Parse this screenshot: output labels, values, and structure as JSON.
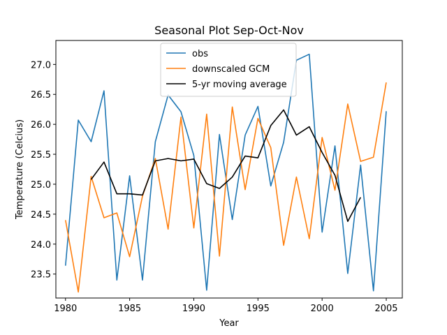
{
  "chart_data": {
    "type": "line",
    "title": "Seasonal Plot Sep-Oct-Nov",
    "xlabel": "Year",
    "ylabel": "Temperature (Celcius)",
    "xlim": [
      1979.25,
      2006.25
    ],
    "ylim": [
      23.1,
      27.4
    ],
    "xticks": [
      1980,
      1985,
      1990,
      1995,
      2000,
      2005
    ],
    "yticks": [
      23.5,
      24.0,
      24.5,
      25.0,
      25.5,
      26.0,
      26.5,
      27.0
    ],
    "ytick_labels": [
      "23.5",
      "24.0",
      "24.5",
      "25.0",
      "25.5",
      "26.0",
      "26.5",
      "27.0"
    ],
    "grid": false,
    "legend": "upper center",
    "series": [
      {
        "name": "obs",
        "color": "#1f77b4",
        "x": [
          1980,
          1981,
          1982,
          1983,
          1984,
          1985,
          1986,
          1987,
          1988,
          1989,
          1990,
          1991,
          1992,
          1993,
          1994,
          1995,
          1996,
          1997,
          1998,
          1999,
          2000,
          2001,
          2002,
          2003,
          2004,
          2005
        ],
        "values": [
          23.64,
          26.07,
          25.71,
          26.56,
          23.4,
          25.14,
          23.4,
          25.71,
          26.49,
          26.21,
          25.48,
          23.23,
          25.83,
          24.41,
          25.82,
          26.3,
          24.97,
          25.7,
          27.07,
          27.17,
          24.2,
          25.64,
          23.51,
          25.32,
          23.22,
          26.22
        ]
      },
      {
        "name": "downscaled GCM",
        "color": "#ff7f0e",
        "x": [
          1980,
          1981,
          1982,
          1983,
          1984,
          1985,
          1986,
          1987,
          1988,
          1989,
          1990,
          1991,
          1992,
          1993,
          1994,
          1995,
          1996,
          1997,
          1998,
          1999,
          2000,
          2001,
          2002,
          2003,
          2004,
          2005
        ],
        "values": [
          24.4,
          23.2,
          25.13,
          24.44,
          24.52,
          23.79,
          24.8,
          25.43,
          24.25,
          26.12,
          24.27,
          26.17,
          23.8,
          26.29,
          24.91,
          26.1,
          25.61,
          23.98,
          25.12,
          24.09,
          25.78,
          24.9,
          26.34,
          25.38,
          25.45,
          26.7
        ]
      },
      {
        "name": "5-yr moving average",
        "color": "#000000",
        "x": [
          1982,
          1983,
          1984,
          1985,
          1986,
          1987,
          1988,
          1989,
          1990,
          1991,
          1992,
          1993,
          1994,
          1995,
          1996,
          1997,
          1998,
          1999,
          2000,
          2001,
          2002,
          2003
        ],
        "values": [
          25.08,
          25.37,
          24.84,
          24.84,
          24.82,
          25.39,
          25.43,
          25.39,
          25.42,
          25.01,
          24.93,
          25.12,
          25.47,
          25.44,
          25.98,
          26.24,
          25.82,
          25.96,
          25.53,
          25.15,
          24.38,
          24.78
        ]
      }
    ]
  }
}
